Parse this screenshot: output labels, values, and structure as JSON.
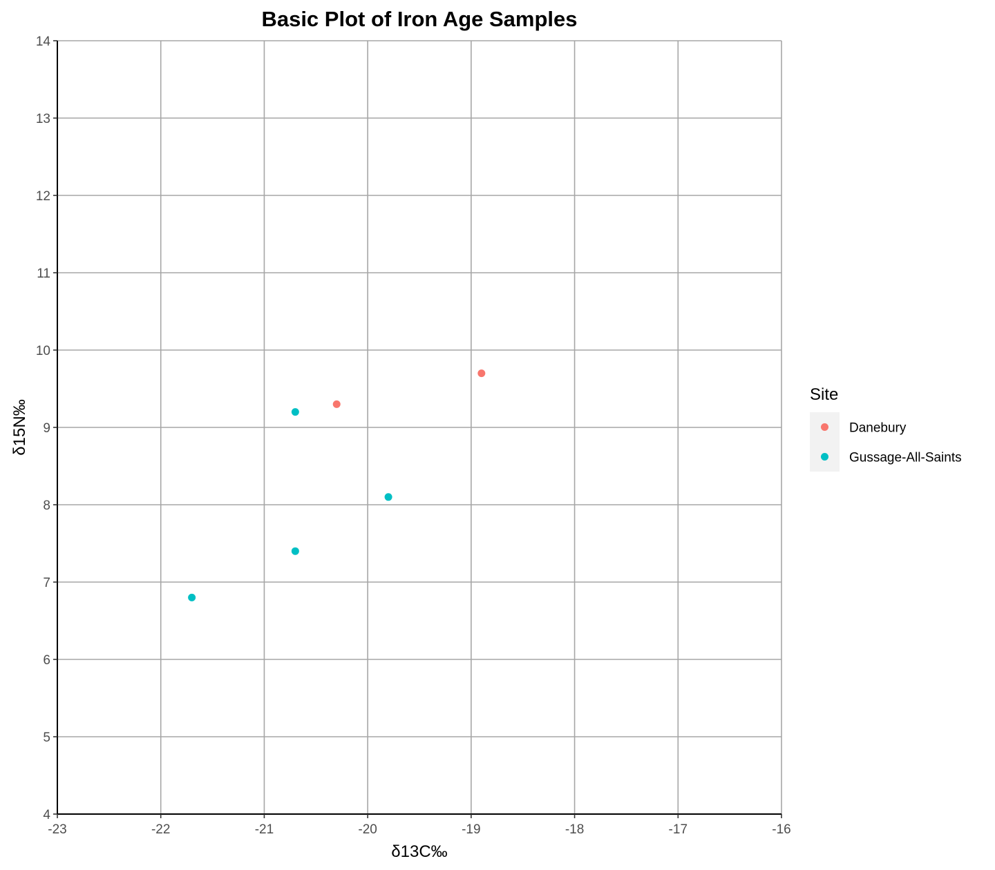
{
  "chart_data": {
    "type": "scatter",
    "title": "Basic Plot of Iron Age Samples",
    "xlabel": "δ13C‰",
    "ylabel": "δ15N‰",
    "xlim": [
      -23,
      -16
    ],
    "ylim": [
      4,
      14
    ],
    "x_ticks": [
      "-23",
      "-22",
      "-21",
      "-20",
      "-19",
      "-18",
      "-17",
      "-16"
    ],
    "y_ticks": [
      "4",
      "5",
      "6",
      "7",
      "8",
      "9",
      "10",
      "11",
      "12",
      "13",
      "14"
    ],
    "grid": true,
    "legend": {
      "title": "Site",
      "position": "right"
    },
    "series": [
      {
        "name": "Danebury",
        "color": "#F8766D",
        "points": [
          {
            "x": -20.3,
            "y": 9.3
          },
          {
            "x": -18.9,
            "y": 9.7
          }
        ]
      },
      {
        "name": "Gussage-All-Saints",
        "color": "#00BFC4",
        "points": [
          {
            "x": -20.7,
            "y": 9.2
          },
          {
            "x": -19.8,
            "y": 8.1
          },
          {
            "x": -20.7,
            "y": 7.4
          },
          {
            "x": -21.7,
            "y": 6.8
          }
        ]
      }
    ]
  }
}
